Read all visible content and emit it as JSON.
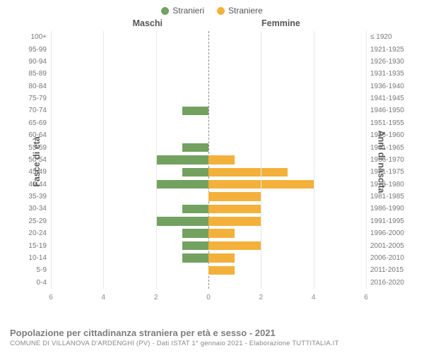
{
  "legend": {
    "male": {
      "label": "Stranieri",
      "color": "#72a160"
    },
    "female": {
      "label": "Straniere",
      "color": "#f3b13b"
    }
  },
  "headers": {
    "male": "Maschi",
    "female": "Femmine"
  },
  "axis_titles": {
    "left": "Fasce di età",
    "right": "Anni di nascita"
  },
  "chart": {
    "type": "population-pyramid",
    "xmax": 6,
    "xtick_step": 2,
    "xticks": [
      6,
      4,
      2,
      0,
      2,
      4,
      6
    ],
    "grid_color": "#e8e8e8",
    "center_dash_color": "#888888",
    "background_color": "#ffffff",
    "bar_height_pct": 72,
    "label_fontsize": 10,
    "tick_fontsize": 10,
    "title_fontsize": 12.5
  },
  "rows": [
    {
      "age": "100+",
      "birth": "≤ 1920",
      "m": 0,
      "f": 0
    },
    {
      "age": "95-99",
      "birth": "1921-1925",
      "m": 0,
      "f": 0
    },
    {
      "age": "90-94",
      "birth": "1926-1930",
      "m": 0,
      "f": 0
    },
    {
      "age": "85-89",
      "birth": "1931-1935",
      "m": 0,
      "f": 0
    },
    {
      "age": "80-84",
      "birth": "1936-1940",
      "m": 0,
      "f": 0
    },
    {
      "age": "75-79",
      "birth": "1941-1945",
      "m": 0,
      "f": 0
    },
    {
      "age": "70-74",
      "birth": "1946-1950",
      "m": 1,
      "f": 0
    },
    {
      "age": "65-69",
      "birth": "1951-1955",
      "m": 0,
      "f": 0
    },
    {
      "age": "60-64",
      "birth": "1956-1960",
      "m": 0,
      "f": 0
    },
    {
      "age": "55-59",
      "birth": "1961-1965",
      "m": 1,
      "f": 0
    },
    {
      "age": "50-54",
      "birth": "1966-1970",
      "m": 2,
      "f": 1
    },
    {
      "age": "45-49",
      "birth": "1971-1975",
      "m": 1,
      "f": 3
    },
    {
      "age": "40-44",
      "birth": "1976-1980",
      "m": 2,
      "f": 4
    },
    {
      "age": "35-39",
      "birth": "1981-1985",
      "m": 0,
      "f": 2
    },
    {
      "age": "30-34",
      "birth": "1986-1990",
      "m": 1,
      "f": 2
    },
    {
      "age": "25-29",
      "birth": "1991-1995",
      "m": 2,
      "f": 2
    },
    {
      "age": "20-24",
      "birth": "1996-2000",
      "m": 1,
      "f": 1
    },
    {
      "age": "15-19",
      "birth": "2001-2005",
      "m": 1,
      "f": 2
    },
    {
      "age": "10-14",
      "birth": "2006-2010",
      "m": 1,
      "f": 1
    },
    {
      "age": "5-9",
      "birth": "2011-2015",
      "m": 0,
      "f": 1
    },
    {
      "age": "0-4",
      "birth": "2016-2020",
      "m": 0,
      "f": 0
    }
  ],
  "footer": {
    "title": "Popolazione per cittadinanza straniera per età e sesso - 2021",
    "subtitle": "COMUNE DI VILLANOVA D'ARDENGHI (PV) - Dati ISTAT 1° gennaio 2021 - Elaborazione TUTTITALIA.IT"
  }
}
